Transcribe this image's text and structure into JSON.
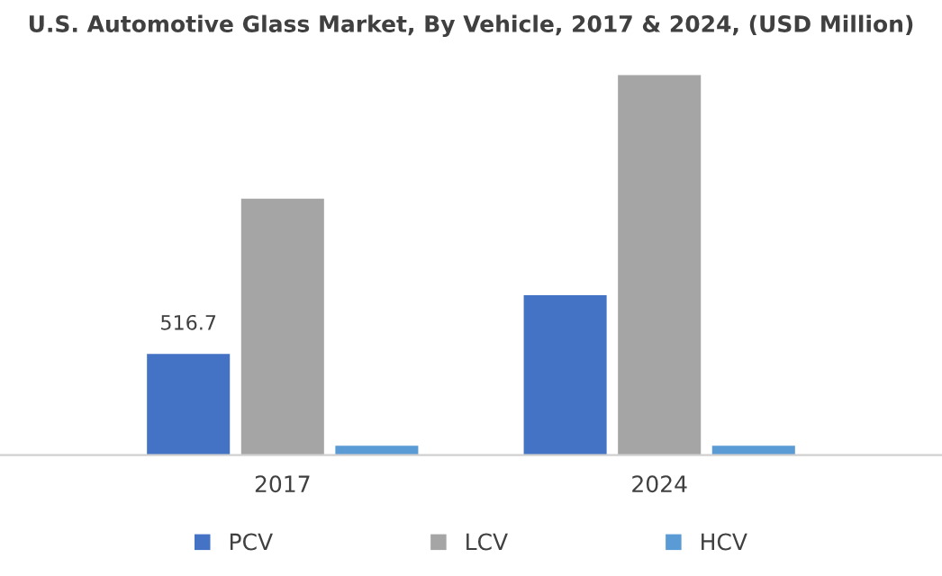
{
  "chart_data": {
    "type": "bar",
    "title": "U.S. Automotive Glass Market, By Vehicle, 2017 & 2024, (USD Million)",
    "categories": [
      "2017",
      "2024"
    ],
    "legend": "bottom",
    "series": [
      {
        "name": "PCV",
        "color": "#4472c4",
        "values": [
          516.7,
          817
        ],
        "value_labels": [
          "516.7",
          null
        ]
      },
      {
        "name": "LCV",
        "color": "#a5a5a5",
        "values": [
          1310,
          1943
        ]
      },
      {
        "name": "HCV",
        "color": "#5b9bd5",
        "values": [
          48,
          48
        ]
      }
    ]
  }
}
